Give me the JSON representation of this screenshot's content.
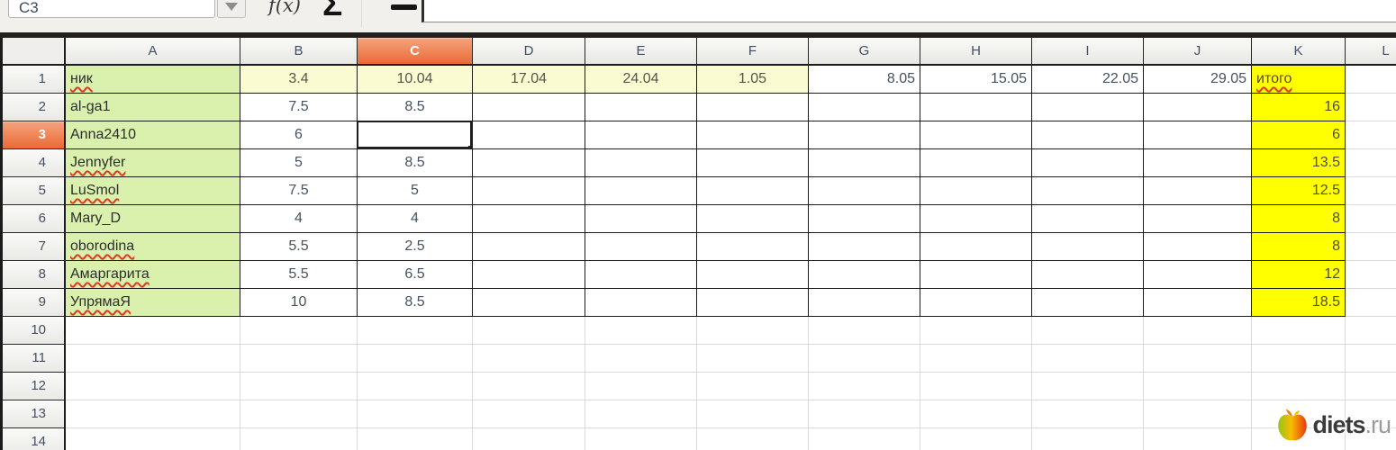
{
  "toolbar": {
    "name_box_value": "C3",
    "function_wizard_label": "f(x)",
    "sum_label": "Σ",
    "input_line_value": ""
  },
  "sheet": {
    "column_headers": [
      "A",
      "B",
      "C",
      "D",
      "E",
      "F",
      "G",
      "H",
      "I",
      "J",
      "K",
      "L"
    ],
    "row_headers": [
      "1",
      "2",
      "3",
      "4",
      "5",
      "6",
      "7",
      "8",
      "9",
      "10",
      "11",
      "12",
      "13",
      "14"
    ],
    "selected_cell": "C3",
    "selected_column_index": 2,
    "selected_row_index": 2,
    "cells": [
      [
        "ник",
        "3.4",
        "10.04",
        "17.04",
        "24.04",
        "1.05",
        "8.05",
        "15.05",
        "22.05",
        "29.05",
        "итого"
      ],
      [
        "al-ga1",
        "7.5",
        "8.5",
        "",
        "",
        "",
        "",
        "",
        "",
        "",
        "16"
      ],
      [
        "Anna2410",
        "6",
        "",
        "",
        "",
        "",
        "",
        "",
        "",
        "",
        "6"
      ],
      [
        "Jennyfer",
        "5",
        "8.5",
        "",
        "",
        "",
        "",
        "",
        "",
        "",
        "13.5"
      ],
      [
        "LuSmol",
        "7.5",
        "5",
        "",
        "",
        "",
        "",
        "",
        "",
        "",
        "12.5"
      ],
      [
        "Mary_D",
        "4",
        "4",
        "",
        "",
        "",
        "",
        "",
        "",
        "",
        "8"
      ],
      [
        "oborodina",
        "5.5",
        "2.5",
        "",
        "",
        "",
        "",
        "",
        "",
        "",
        "8"
      ],
      [
        "Амаргарита",
        "5.5",
        "6.5",
        "",
        "",
        "",
        "",
        "",
        "",
        "",
        "12"
      ],
      [
        "УпрямаЯ",
        "10",
        "8.5",
        "",
        "",
        "",
        "",
        "",
        "",
        "",
        "18.5"
      ]
    ],
    "spellcheck_cells": [
      [
        0,
        0
      ],
      [
        3,
        0
      ],
      [
        4,
        0
      ],
      [
        6,
        0
      ],
      [
        7,
        0
      ],
      [
        8,
        0
      ],
      [
        0,
        10
      ]
    ]
  },
  "watermark": {
    "brand": "diets",
    "tld": ".ru"
  },
  "colors": {
    "selection_orange": "#ec7140",
    "name_column_green": "#d9f1ad",
    "date_header_yellow": "#fbfbd1",
    "total_column_yellow": "#ffff00"
  }
}
